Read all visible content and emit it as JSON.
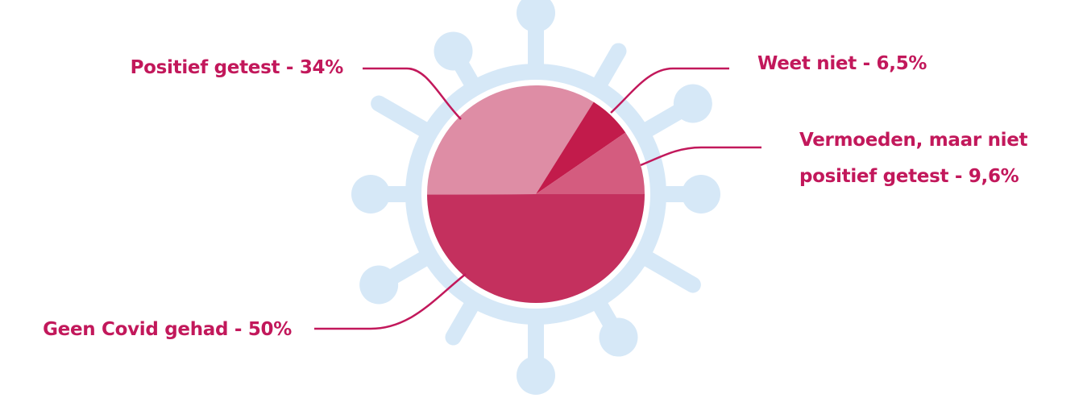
{
  "chart_data": {
    "type": "pie",
    "values": [
      50,
      34,
      6.5,
      9.6
    ],
    "value_labels": [
      "Geen Covid gehad - 50%",
      "Positief getest - 34%",
      "Weet niet - 6,5%",
      "Vermoeden, maar niet positief getest - 9,6%"
    ],
    "colors": [
      "#c4305e",
      "#de8da5",
      "#c21b4b",
      "#d45c7f"
    ],
    "label_color": "#c2185b"
  }
}
